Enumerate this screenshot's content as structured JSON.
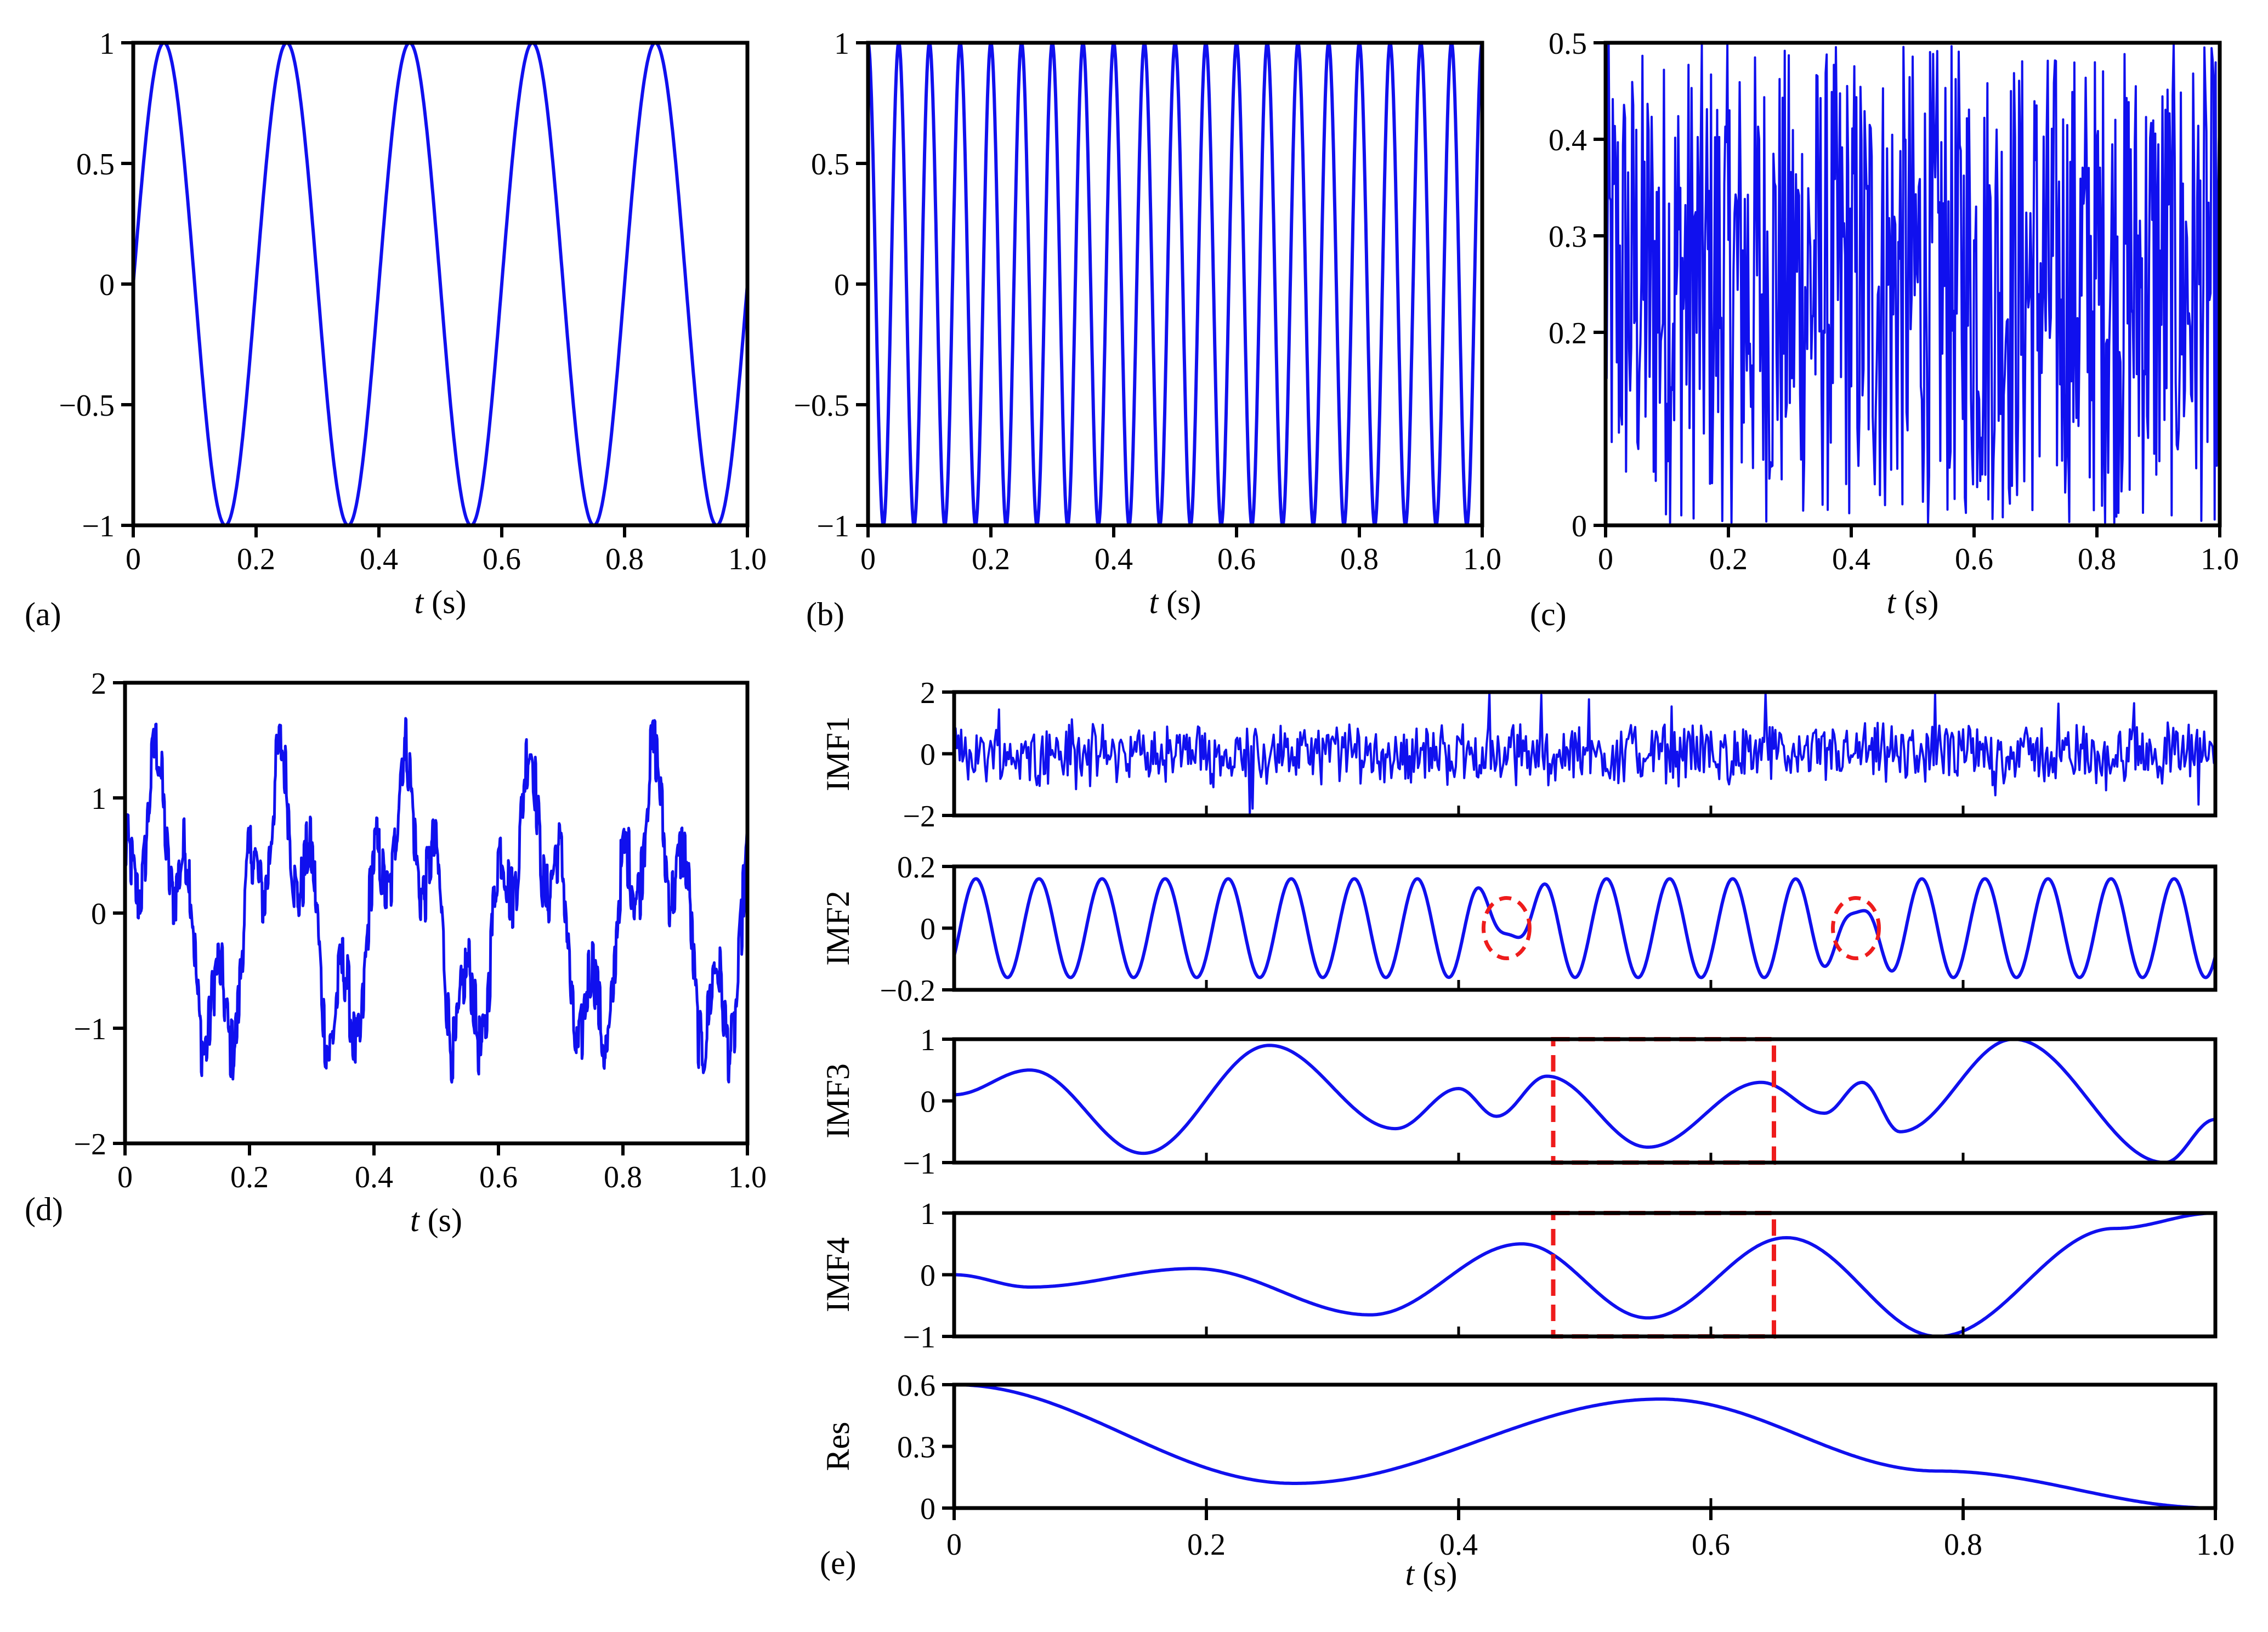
{
  "figure": {
    "panel_letters": [
      "(a)",
      "(b)",
      "(c)",
      "(d)",
      "(e)"
    ],
    "series_color": "#1010ee",
    "highlight_color": "#ee1c1c"
  },
  "chart_data": [
    {
      "id": "a",
      "type": "line",
      "label": "(a)",
      "xlabel_var": "t",
      "xlabel_unit": " (s)",
      "xlim": [
        0,
        1.0
      ],
      "ylim": [
        -1,
        1
      ],
      "xticks": [
        "0",
        "0.2",
        "0.4",
        "0.6",
        "0.8",
        "1.0"
      ],
      "xtick_values": [
        0,
        0.2,
        0.4,
        0.6,
        0.8,
        1.0
      ],
      "yticks": [
        "1",
        "0.5",
        "0",
        "−0.5",
        "−1"
      ],
      "ytick_values": [
        1,
        0.5,
        0,
        -0.5,
        -1
      ],
      "signal": {
        "kind": "sine",
        "amplitude": 1,
        "frequency_hz": 5
      }
    },
    {
      "id": "b",
      "type": "line",
      "label": "(b)",
      "xlabel_var": "t",
      "xlabel_unit": " (s)",
      "xlim": [
        0,
        1.0
      ],
      "ylim": [
        -1,
        1
      ],
      "xticks": [
        "0",
        "0.2",
        "0.4",
        "0.6",
        "0.8",
        "1.0"
      ],
      "xtick_values": [
        0,
        0.2,
        0.4,
        0.6,
        0.8,
        1.0
      ],
      "yticks": [
        "1",
        "0.5",
        "0",
        "−0.5",
        "−1"
      ],
      "ytick_values": [
        1,
        0.5,
        0,
        -0.5,
        -1
      ],
      "signal": {
        "kind": "cosine",
        "amplitude": 1,
        "frequency_hz": 20
      }
    },
    {
      "id": "c",
      "type": "line",
      "label": "(c)",
      "xlabel_var": "t",
      "xlabel_unit": " (s)",
      "xlim": [
        0,
        1.0
      ],
      "ylim": [
        0,
        0.5
      ],
      "xticks": [
        "0",
        "0.2",
        "0.4",
        "0.6",
        "0.8",
        "1.0"
      ],
      "xtick_values": [
        0,
        0.2,
        0.4,
        0.6,
        0.8,
        1.0
      ],
      "yticks": [
        "0.5",
        "0.4",
        "0.3",
        "0.2",
        "0"
      ],
      "ytick_values": [
        0.5,
        0.4,
        0.3,
        0.2,
        0
      ],
      "signal": {
        "kind": "uniform-noise",
        "min": 0,
        "max": 0.5
      }
    },
    {
      "id": "d",
      "type": "line",
      "label": "(d)",
      "xlabel_var": "t",
      "xlabel_unit": " (s)",
      "xlim": [
        0,
        1.0
      ],
      "ylim": [
        -2,
        2
      ],
      "xticks": [
        "0",
        "0.2",
        "0.4",
        "0.6",
        "0.8",
        "1.0"
      ],
      "xtick_values": [
        0,
        0.2,
        0.4,
        0.6,
        0.8,
        1.0
      ],
      "yticks": [
        "2",
        "1",
        "0",
        "−1",
        "−2"
      ],
      "ytick_values": [
        2,
        1,
        0,
        -1,
        -2
      ],
      "signal": {
        "kind": "sum of (a), (b) and (c)"
      }
    },
    {
      "id": "e",
      "type": "line",
      "label": "(e)",
      "xlabel_var": "t",
      "xlabel_unit": " (s)",
      "xlim": [
        0,
        1.0
      ],
      "xticks": [
        "0",
        "0.2",
        "0.4",
        "0.6",
        "0.8",
        "1.0"
      ],
      "xtick_values": [
        0,
        0.2,
        0.4,
        0.6,
        0.8,
        1.0
      ],
      "subplots": [
        {
          "ylabel": "IMF1",
          "ylim": [
            -2,
            2
          ],
          "yticks": [
            "2",
            "0",
            "−2"
          ],
          "ytick_values": [
            2,
            0,
            -2
          ],
          "signal": {
            "kind": "high-frequency noise component"
          }
        },
        {
          "ylabel": "IMF2",
          "ylim": [
            -0.2,
            0.2
          ],
          "yticks": [
            "0.2",
            "0",
            "−0.2"
          ],
          "ytick_values": [
            0.2,
            0,
            -0.2
          ],
          "signal": {
            "kind": "sine",
            "amplitude": 0.17,
            "frequency_hz": 20
          },
          "highlight_circles_t": [
            0.438,
            0.715
          ]
        },
        {
          "ylabel": "IMF3",
          "ylim": [
            -1,
            1
          ],
          "yticks": [
            "1",
            "0",
            "−1"
          ],
          "ytick_values": [
            1,
            0,
            -1
          ],
          "x": [
            0,
            0.06,
            0.15,
            0.25,
            0.35,
            0.4,
            0.43,
            0.47,
            0.55,
            0.64,
            0.69,
            0.72,
            0.75,
            0.84,
            0.96,
            1.0
          ],
          "y": [
            0.1,
            0.5,
            -0.85,
            0.9,
            -0.45,
            0.2,
            -0.25,
            0.4,
            -0.75,
            0.3,
            -0.2,
            0.3,
            -0.5,
            1.0,
            -1.0,
            -0.3
          ],
          "highlight_box_t": [
            0.475,
            0.65
          ]
        },
        {
          "ylabel": "IMF4",
          "ylim": [
            -1,
            1
          ],
          "yticks": [
            "1",
            "0",
            "−1"
          ],
          "ytick_values": [
            1,
            0,
            -1
          ],
          "x": [
            0,
            0.06,
            0.19,
            0.33,
            0.45,
            0.55,
            0.66,
            0.78,
            0.92,
            1.0
          ],
          "y": [
            0,
            -0.2,
            0.1,
            -0.65,
            0.5,
            -0.7,
            0.6,
            -1.0,
            0.75,
            1.0
          ],
          "highlight_box_t": [
            0.475,
            0.65
          ]
        },
        {
          "ylabel": "Res",
          "ylim": [
            0,
            0.6
          ],
          "yticks": [
            "0.6",
            "0.3",
            "0"
          ],
          "ytick_values": [
            0.6,
            0.3,
            0
          ],
          "x": [
            0,
            0.27,
            0.56,
            0.78,
            1.0
          ],
          "y": [
            0.6,
            0.12,
            0.53,
            0.18,
            0.0
          ]
        }
      ]
    }
  ]
}
